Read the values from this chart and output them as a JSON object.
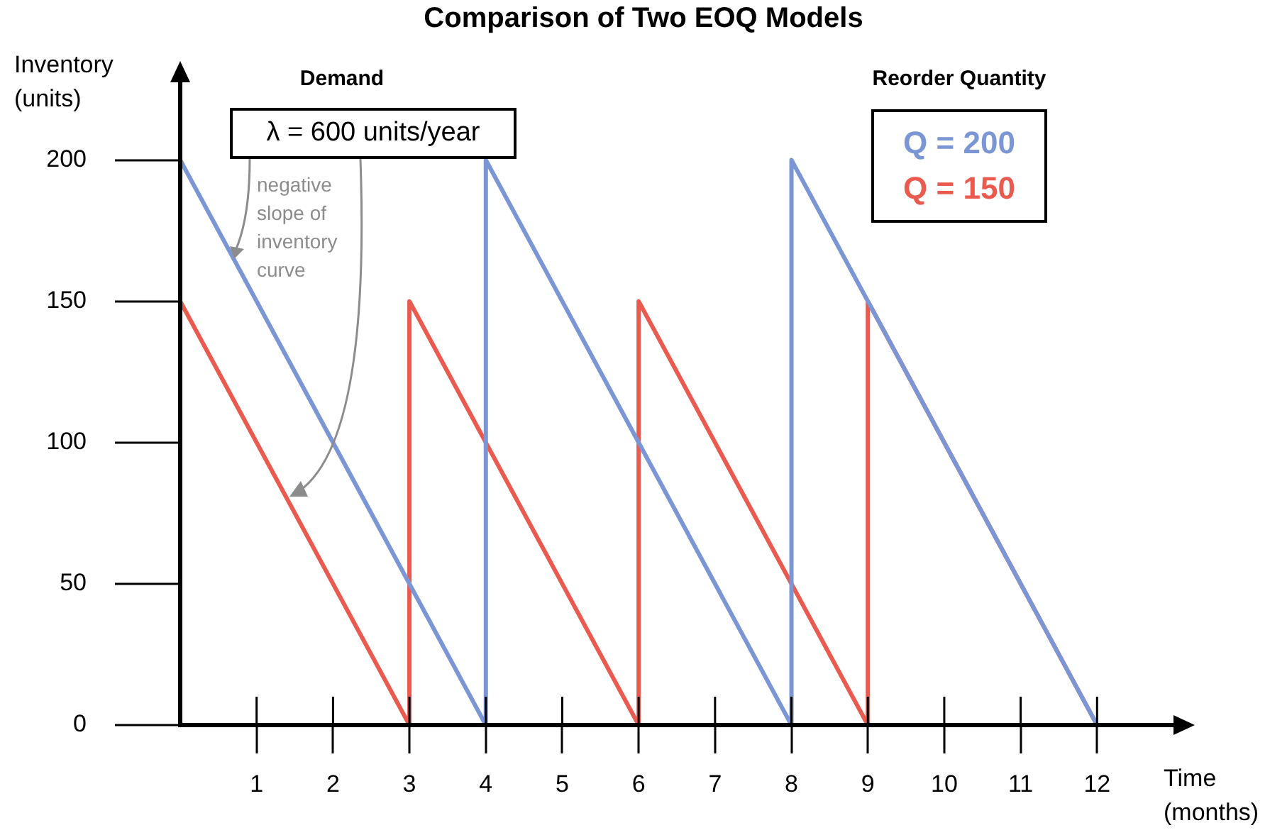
{
  "chart_data": {
    "type": "line",
    "title": "Comparison of Two EOQ Models",
    "xlabel": "Time (months)",
    "ylabel": "Inventory (units)",
    "legend_title": "Reorder Quantity",
    "legend": "top right",
    "marker": "none",
    "grid": false,
    "xlim": [
      0,
      13
    ],
    "xticks": [
      1,
      2,
      3,
      4,
      5,
      6,
      7,
      8,
      9,
      10,
      11,
      12
    ],
    "ylim": [
      0,
      228
    ],
    "yticks": [
      0,
      50,
      100,
      150,
      200
    ],
    "annotations": [
      "Demand",
      {
        "text": "λ = 600 units/year",
        "x": 0.7,
        "y": 165
      },
      "negative slope of inventory curve"
    ],
    "series": [
      {
        "name": "Q = 200",
        "color": "#7b96d4",
        "x": [
          0,
          4,
          4,
          8,
          8,
          12
        ],
        "values": [
          200,
          0,
          200,
          0,
          200,
          0
        ]
      },
      {
        "name": "Q = 150",
        "color": "#ea5a4f",
        "x": [
          0,
          3,
          3,
          6,
          6,
          9,
          9,
          12
        ],
        "values": [
          150,
          0,
          150,
          0,
          150,
          0,
          150,
          0
        ]
      }
    ]
  }
}
